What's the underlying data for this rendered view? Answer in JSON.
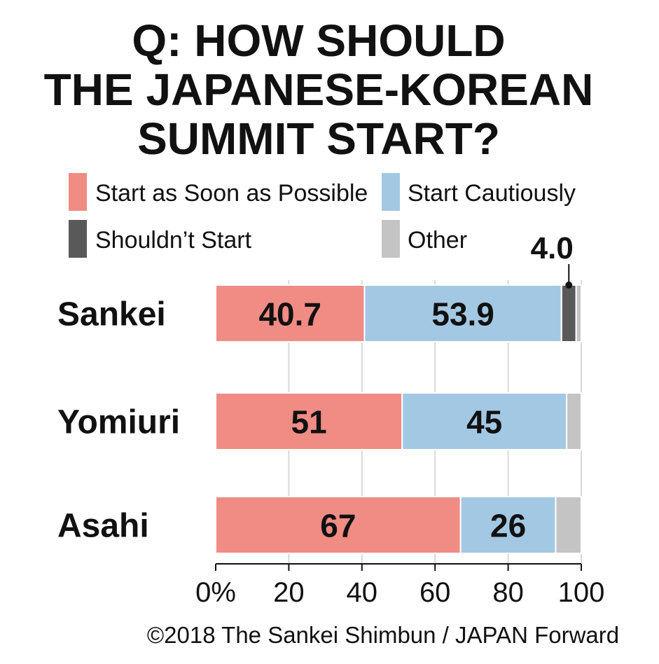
{
  "chart_data": {
    "type": "bar",
    "orientation": "horizontal",
    "stacked": true,
    "title_lines": [
      "Q: HOW SHOULD",
      "THE JAPANESE-KOREAN",
      "SUMMIT START?"
    ],
    "categories": [
      "Sankei",
      "Yomiuri",
      "Asahi"
    ],
    "series": [
      {
        "name": "Start as Soon as Possible",
        "color": "#f08c84",
        "values": [
          40.7,
          51,
          67
        ],
        "labels": [
          "40.7",
          "51",
          "67"
        ]
      },
      {
        "name": "Start Cautiously",
        "color": "#a3c8e3",
        "values": [
          53.9,
          45,
          26
        ],
        "labels": [
          "53.9",
          "45",
          "26"
        ]
      },
      {
        "name": "Shouldn't Start",
        "color": "#595959",
        "values": [
          4.0,
          0,
          0
        ],
        "labels": [
          "",
          "",
          ""
        ]
      },
      {
        "name": "Other",
        "color": "#c4c4c4",
        "values": [
          1.4,
          4,
          7
        ],
        "labels": [
          "",
          "",
          ""
        ]
      }
    ],
    "legend_entries": [
      "Start as Soon as Possible",
      "Start Cautiously",
      "Shouldn’t Start",
      "Other"
    ],
    "callout": {
      "category": "Sankei",
      "series": "Shouldn't Start",
      "label": "4.0"
    },
    "x_ticks": [
      0,
      20,
      40,
      60,
      80,
      100
    ],
    "x_tick_labels": [
      "0%",
      "20",
      "40",
      "60",
      "80",
      "100"
    ],
    "xlim": [
      0,
      100
    ],
    "grid": true,
    "legend_position": "top"
  },
  "credit": "©2018 The Sankei Shimbun / JAPAN Forward"
}
